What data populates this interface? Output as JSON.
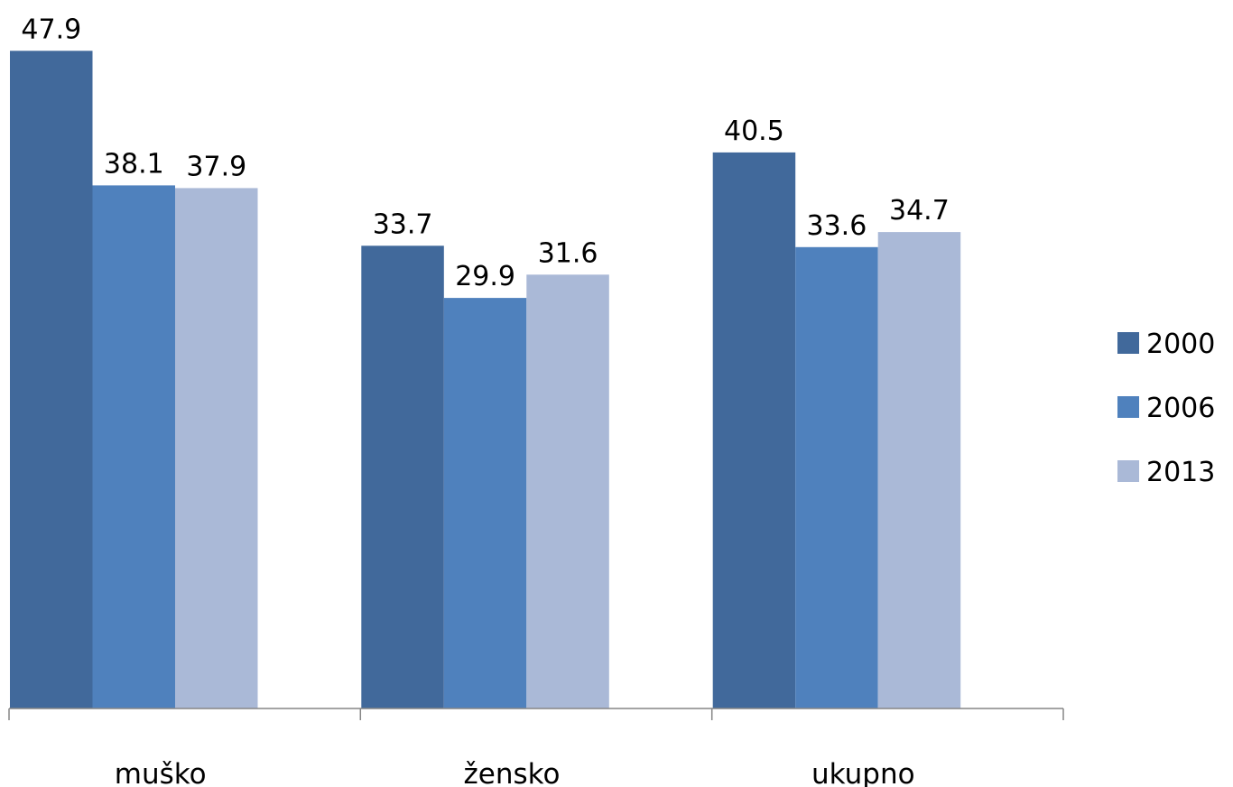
{
  "chart_data": {
    "type": "bar",
    "categories": [
      "muško",
      "žensko",
      "ukupno"
    ],
    "series": [
      {
        "name": "2000",
        "values": [
          47.9,
          33.7,
          40.5
        ],
        "color": "#41699b"
      },
      {
        "name": "2006",
        "values": [
          38.1,
          29.9,
          33.6
        ],
        "color": "#4f81bd"
      },
      {
        "name": "2013",
        "values": [
          37.9,
          31.6,
          34.7
        ],
        "color": "#aab9d7"
      }
    ],
    "data_labels": [
      [
        "47.9",
        "33.7",
        "40.5"
      ],
      [
        "38.1",
        "29.9",
        "33.6"
      ],
      [
        "37.9",
        "31.6",
        "34.7"
      ]
    ],
    "ylim": [
      0,
      50
    ],
    "y_axis_visible": false,
    "grid": false,
    "legend": "right"
  }
}
